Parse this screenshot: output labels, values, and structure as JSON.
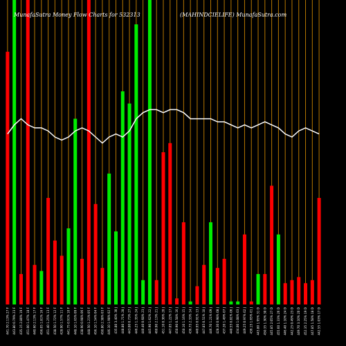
{
  "chart_data": {
    "type": "bar",
    "title_left": "MunafaSutra  Money Flow  Charts for 532313",
    "title_right": "(MAHINDCIELIFE) MunafaSutra.com",
    "ylim": [
      0,
      100
    ],
    "colors": {
      "up": "#00ee00",
      "down": "#ff0000",
      "line": "#ffffff",
      "gridline": "#b87800",
      "background": "#000000"
    },
    "categories": [
      "441.70 2.13% 27 F",
      "443.80 0.79% 23 F",
      "435.15 2.80% 19 F",
      "451.00 1.47% 18 F",
      "440.60 2.13% 17 F",
      "456.05 1.81% 16 F",
      "451.40 1.25% 13 F",
      "438.50 1.72% 12 F",
      "428.90 1.57% 11 F",
      "441.75 0.91% 10 F",
      "448.10 1.65% 09 F",
      "438.90 0.98% 06 F",
      "448.50 1.21% 05 F",
      "456.10 1.54% 04 F",
      "450.80 2.38% 03 F",
      "446.10 1.98% 02 F",
      "435.80 3.40% 30 J",
      "448.80 1.71% 28 J",
      "443.00 0.73% 27 J",
      "446.25 1.35% 24 J",
      "440.40 0.68% 23 J",
      "445.90 1.62% 22 J",
      "460.90 2.13% 21 J",
      "451.10 0.36% 20 J",
      "447.05 1.22% 17 J",
      "450.90 0.58% 16 J",
      "450.10 1.16% 15 J",
      "436.75 2.33% 14 J",
      "440.95 0.91% 13 J",
      "447.85 0.51% 10 J",
      "446.70 1.21% 09 J",
      "428.30 0.98% 08 J",
      "437.20 1.49% 07 J",
      "440.55 0.81% 06 J",
      "434.00 1.08% 03 J",
      "449.25 0.97% 02 J",
      "436.15 1.65% 01 J",
      "443.80 1.95% 31 D",
      "450.35 1.30% 30 D",
      "445.85 2.05% 27 D",
      "455.60 1.33% 26 D",
      "446.40 1.10% 24 D",
      "442.25 0.49% 23 D",
      "449.70 3.10% 20 D",
      "452.35 2.25% 19 D",
      "447.85 1.58% 18 D",
      "442.55 1.03% 17 D"
    ],
    "series": [
      {
        "values": [
          83,
          100,
          10,
          100,
          13,
          11,
          35,
          21,
          16,
          25,
          61,
          15,
          100,
          33,
          12,
          43,
          24,
          70,
          66,
          92,
          8,
          100,
          8,
          50,
          53,
          2,
          27,
          1,
          6,
          13,
          27,
          12,
          15,
          1,
          1,
          23,
          1,
          10,
          10,
          39,
          23,
          7,
          8,
          9,
          7,
          8,
          35
        ],
        "directions": [
          "d",
          "u",
          "d",
          "d",
          "d",
          "u",
          "d",
          "d",
          "d",
          "u",
          "u",
          "d",
          "d",
          "d",
          "d",
          "u",
          "u",
          "u",
          "u",
          "u",
          "u",
          "u",
          "d",
          "d",
          "d",
          "d",
          "d",
          "u",
          "d",
          "d",
          "u",
          "d",
          "d",
          "u",
          "u",
          "d",
          "d",
          "u",
          "d",
          "d",
          "u",
          "d",
          "d",
          "d",
          "d",
          "d",
          "d"
        ]
      },
      {
        "values": [
          56,
          59,
          61,
          59,
          58,
          58,
          57,
          55,
          54,
          55,
          57,
          58,
          57,
          55,
          53,
          55,
          56,
          55,
          57,
          61,
          63,
          64,
          64,
          63,
          64,
          64,
          63,
          61,
          61,
          61,
          61,
          60,
          60,
          59,
          58,
          59,
          58,
          59,
          60,
          59,
          58,
          56,
          55,
          57,
          58,
          57,
          56
        ]
      }
    ]
  }
}
